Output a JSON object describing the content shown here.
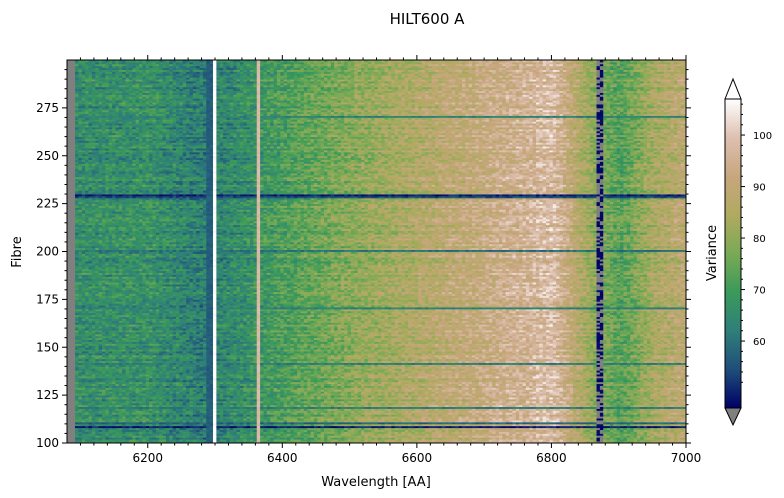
{
  "chart_data": {
    "type": "heatmap",
    "title": "HILT600 A",
    "xlabel": "Wavelength [AA]",
    "ylabel": "Fibre",
    "xlim": [
      6080,
      7000
    ],
    "ylim": [
      100,
      300
    ],
    "x_ticks": [
      6200,
      6400,
      6600,
      6800,
      7000
    ],
    "x_tick_labels": [
      "6200",
      "6400",
      "6600",
      "6800",
      "7000"
    ],
    "y_ticks": [
      100,
      125,
      150,
      175,
      200,
      225,
      250,
      275
    ],
    "y_tick_labels": [
      "100",
      "125",
      "150",
      "175",
      "200",
      "225",
      "250",
      "275"
    ],
    "colorbar": {
      "label": "Variance",
      "range": [
        47,
        107
      ],
      "ticks": [
        60,
        70,
        80,
        90,
        100
      ],
      "tick_labels": [
        "60",
        "70",
        "80",
        "90",
        "100"
      ],
      "extend": "both",
      "colormap": [
        "#000066",
        "#1f4e7a",
        "#2f7f7a",
        "#3a9a5a",
        "#7aaa55",
        "#b0aa60",
        "#c8a67e",
        "#ddc0b0",
        "#ffffff"
      ],
      "under_color": "#808080"
    },
    "nan_color": "#808080",
    "trend": {
      "x": [
        6090,
        6200,
        6280,
        6400,
        6500,
        6600,
        6700,
        6800,
        6860,
        6900,
        6950,
        7000
      ],
      "value": [
        66,
        67,
        62,
        71,
        79,
        86,
        92,
        98,
        80,
        72,
        84,
        89
      ]
    },
    "vertical_features": [
      {
        "x": 6298,
        "value": 107
      },
      {
        "x": 6363,
        "value": 98
      },
      {
        "x": 6869,
        "value": 47
      },
      {
        "x": 6290,
        "value": 57
      }
    ],
    "horizontal_features": [
      {
        "fibre": 108,
        "value": 50
      },
      {
        "fibre": 110,
        "value": 58
      },
      {
        "fibre": 229,
        "value": 50
      },
      {
        "fibre": 228,
        "value": 55
      },
      {
        "fibre": 200,
        "value": 60
      },
      {
        "fibre": 118,
        "value": 62
      },
      {
        "fibre": 141,
        "value": 62
      },
      {
        "fibre": 170,
        "value": 63
      },
      {
        "fibre": 270,
        "value": 63
      }
    ]
  }
}
